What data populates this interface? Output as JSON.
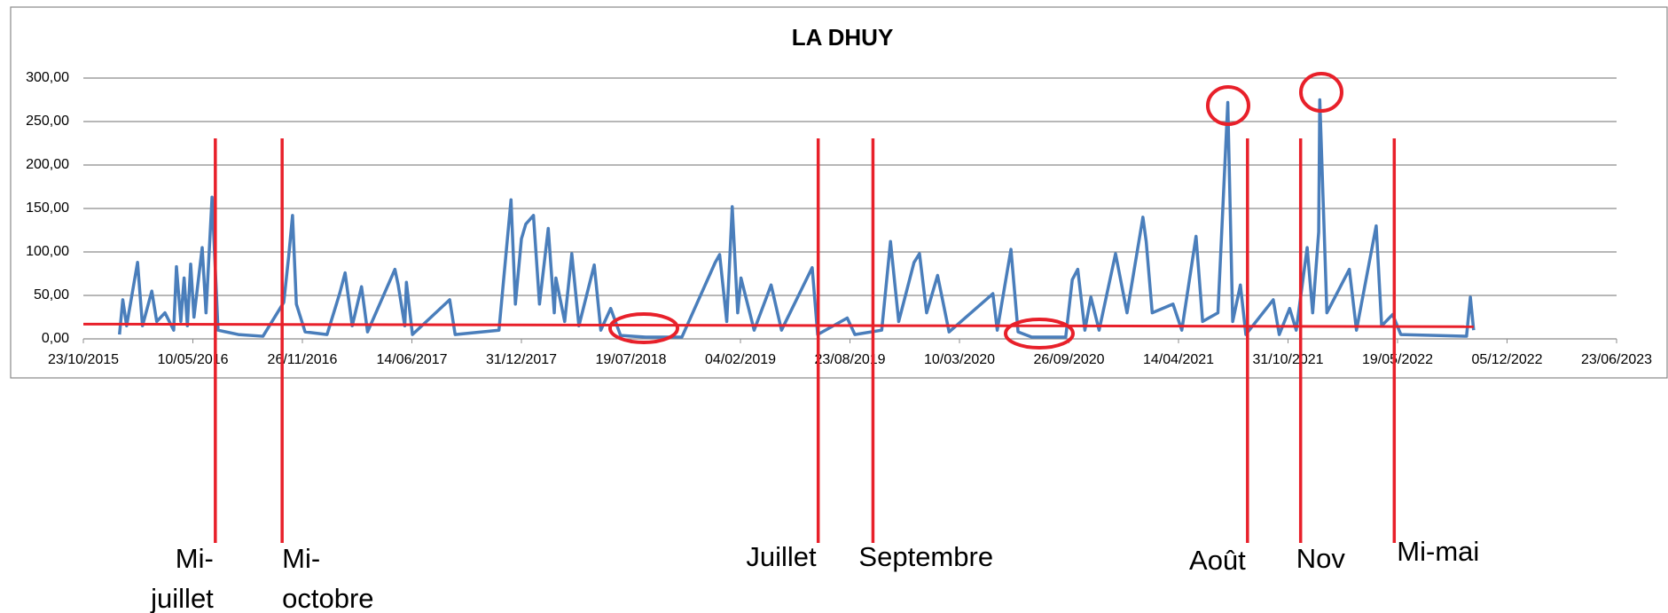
{
  "chart_data": {
    "type": "line",
    "title": "LA DHUY",
    "xlim": [
      "2015-10-23",
      "2023-06-23"
    ],
    "xticks": [
      {
        "value": "2015-10-23",
        "label": "23/10/2015"
      },
      {
        "value": "2016-05-10",
        "label": "10/05/2016"
      },
      {
        "value": "2016-11-26",
        "label": "26/11/2016"
      },
      {
        "value": "2017-06-14",
        "label": "14/06/2017"
      },
      {
        "value": "2017-12-31",
        "label": "31/12/2017"
      },
      {
        "value": "2018-07-19",
        "label": "19/07/2018"
      },
      {
        "value": "2019-02-04",
        "label": "04/02/2019"
      },
      {
        "value": "2019-08-23",
        "label": "23/08/2019"
      },
      {
        "value": "2020-03-10",
        "label": "10/03/2020"
      },
      {
        "value": "2020-09-26",
        "label": "26/09/2020"
      },
      {
        "value": "2021-04-14",
        "label": "14/04/2021"
      },
      {
        "value": "2021-10-31",
        "label": "31/10/2021"
      },
      {
        "value": "2022-05-19",
        "label": "19/05/2022"
      },
      {
        "value": "2022-12-05",
        "label": "05/12/2022"
      },
      {
        "value": "2023-06-23",
        "label": "23/06/2023"
      }
    ],
    "ylim": [
      0,
      300
    ],
    "yticks": [
      {
        "value": 0,
        "label": "0,00"
      },
      {
        "value": 50,
        "label": "50,00"
      },
      {
        "value": 100,
        "label": "100,00"
      },
      {
        "value": 150,
        "label": "150,00"
      },
      {
        "value": 200,
        "label": "200,00"
      },
      {
        "value": 250,
        "label": "250,00"
      },
      {
        "value": 300,
        "label": "300,00"
      }
    ],
    "grid": true,
    "series": [
      {
        "color": "#4a7ebb",
        "x": [
          "2015-12-28",
          "2016-01-03",
          "2016-01-10",
          "2016-01-30",
          "2016-02-08",
          "2016-02-25",
          "2016-03-05",
          "2016-03-20",
          "2016-04-05",
          "2016-04-10",
          "2016-04-18",
          "2016-04-24",
          "2016-04-30",
          "2016-05-06",
          "2016-05-12",
          "2016-05-27",
          "2016-06-03",
          "2016-06-14",
          "2016-06-25",
          "2016-08-01",
          "2016-09-15",
          "2016-10-23",
          "2016-11-01",
          "2016-11-08",
          "2016-11-15",
          "2016-12-01",
          "2017-01-10",
          "2017-02-02",
          "2017-02-12",
          "2017-02-25",
          "2017-03-14",
          "2017-03-25",
          "2017-05-14",
          "2017-05-20",
          "2017-06-01",
          "2017-06-04",
          "2017-06-15",
          "2017-08-22",
          "2017-09-01",
          "2017-11-20",
          "2017-12-12",
          "2017-12-20",
          "2017-12-31",
          "2018-01-08",
          "2018-01-22",
          "2018-02-02",
          "2018-02-18",
          "2018-03-01",
          "2018-03-04",
          "2018-03-20",
          "2018-04-02",
          "2018-04-15",
          "2018-05-13",
          "2018-05-25",
          "2018-06-12",
          "2018-06-30",
          "2018-08-15",
          "2018-10-20",
          "2018-12-20",
          "2018-12-28",
          "2019-01-10",
          "2019-01-20",
          "2019-01-30",
          "2019-02-05",
          "2019-03-01",
          "2019-04-01",
          "2019-04-20",
          "2019-05-25",
          "2019-06-15",
          "2019-06-25",
          "2019-08-18",
          "2019-09-01",
          "2019-10-20",
          "2019-11-05",
          "2019-11-20",
          "2019-12-18",
          "2019-12-28",
          "2020-01-10",
          "2020-01-30",
          "2020-02-20",
          "2020-05-10",
          "2020-05-18",
          "2020-06-12",
          "2020-06-25",
          "2020-07-20",
          "2020-09-20",
          "2020-10-02",
          "2020-10-12",
          "2020-10-25",
          "2020-11-05",
          "2020-11-20",
          "2020-12-20",
          "2021-01-10",
          "2021-02-08",
          "2021-02-14",
          "2021-02-25",
          "2021-04-04",
          "2021-04-20",
          "2021-05-16",
          "2021-05-28",
          "2021-06-25",
          "2021-07-13",
          "2021-07-22",
          "2021-08-05",
          "2021-08-15",
          "2021-10-04",
          "2021-10-15",
          "2021-11-03",
          "2021-11-15",
          "2021-12-05",
          "2021-12-15",
          "2021-12-26",
          "2021-12-28",
          "2022-01-10",
          "2022-02-20",
          "2022-03-05",
          "2022-04-10",
          "2022-04-20",
          "2022-05-10",
          "2022-05-25",
          "2022-09-22",
          "2022-09-29",
          "2022-10-05"
        ],
        "values": [
          5,
          45,
          15,
          88,
          15,
          55,
          20,
          30,
          10,
          83,
          20,
          70,
          15,
          86,
          25,
          105,
          30,
          163,
          10,
          5,
          3,
          42,
          95,
          142,
          40,
          8,
          5,
          52,
          76,
          15,
          60,
          8,
          80,
          62,
          15,
          65,
          5,
          45,
          5,
          10,
          160,
          40,
          115,
          132,
          142,
          40,
          127,
          30,
          70,
          20,
          98,
          15,
          85,
          10,
          35,
          4,
          2,
          2,
          88,
          97,
          20,
          152,
          30,
          70,
          10,
          62,
          10,
          55,
          82,
          5,
          24,
          5,
          10,
          112,
          20,
          88,
          98,
          30,
          73,
          8,
          52,
          10,
          103,
          8,
          2,
          2,
          68,
          80,
          10,
          48,
          10,
          98,
          30,
          140,
          112,
          30,
          40,
          10,
          118,
          20,
          30,
          272,
          20,
          62,
          5,
          45,
          5,
          35,
          10,
          105,
          30,
          123,
          275,
          30,
          80,
          10,
          130,
          15,
          28,
          5,
          3,
          48,
          10
        ]
      },
      {
        "color": "#e8202a",
        "x": [
          "2015-10-23",
          "2022-10-05"
        ],
        "values": [
          17,
          14
        ]
      }
    ],
    "annotations": [
      {
        "lines": [
          "Mi-",
          "juillet"
        ],
        "x": "2016-06-20"
      },
      {
        "lines": [
          "Mi-",
          "octobre"
        ],
        "x": "2016-10-20"
      },
      {
        "lines": [
          "Juillet"
        ],
        "x": "2019-06-26"
      },
      {
        "lines": [
          "Septembre"
        ],
        "x": "2019-10-04"
      },
      {
        "lines": [
          "Août"
        ],
        "x": "2021-08-18"
      },
      {
        "lines": [
          "Nov"
        ],
        "x": "2021-11-23"
      },
      {
        "lines": [
          "Mi-mai"
        ],
        "x": "2022-05-13"
      }
    ],
    "annotation_color": "#e8202a"
  }
}
